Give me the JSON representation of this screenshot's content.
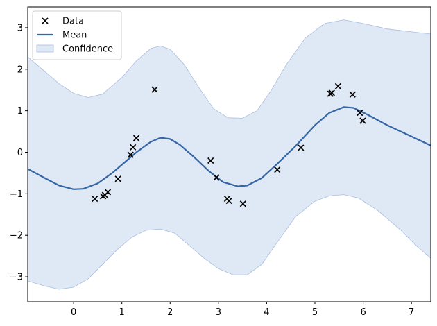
{
  "chart_data": {
    "type": "line",
    "xlim": [
      -0.95,
      7.4
    ],
    "ylim": [
      -3.6,
      3.5
    ],
    "x_ticks": [
      0,
      1,
      2,
      3,
      4,
      5,
      6,
      7
    ],
    "y_ticks": [
      -3,
      -2,
      -1,
      0,
      1,
      2,
      3
    ],
    "grid": false,
    "legend_position": "top-left",
    "legend": [
      {
        "label": "Data",
        "style": "marker-x"
      },
      {
        "label": "Mean",
        "style": "line"
      },
      {
        "label": "Confidence",
        "style": "band"
      }
    ],
    "colors": {
      "data": "#000000",
      "mean": "#3465a4",
      "confidence_fill": "#c5d6ec",
      "confidence_edge": "#a9bedc"
    },
    "series": [
      {
        "name": "Data",
        "kind": "scatter",
        "points": [
          [
            0.44,
            -1.12
          ],
          [
            0.61,
            -1.06
          ],
          [
            0.65,
            -1.03
          ],
          [
            0.71,
            -0.96
          ],
          [
            0.92,
            -0.64
          ],
          [
            1.18,
            -0.06
          ],
          [
            1.23,
            0.12
          ],
          [
            1.3,
            0.34
          ],
          [
            1.68,
            1.51
          ],
          [
            2.84,
            -0.2
          ],
          [
            2.96,
            -0.61
          ],
          [
            3.18,
            -1.12
          ],
          [
            3.22,
            -1.17
          ],
          [
            3.51,
            -1.24
          ],
          [
            4.22,
            -0.42
          ],
          [
            4.71,
            0.11
          ],
          [
            5.32,
            1.41
          ],
          [
            5.35,
            1.43
          ],
          [
            5.48,
            1.59
          ],
          [
            5.78,
            1.39
          ],
          [
            5.93,
            0.95
          ],
          [
            5.99,
            0.76
          ]
        ]
      },
      {
        "name": "Mean",
        "kind": "line",
        "points": [
          [
            -0.95,
            -0.4
          ],
          [
            -0.6,
            -0.62
          ],
          [
            -0.3,
            -0.8
          ],
          [
            0.0,
            -0.89
          ],
          [
            0.2,
            -0.88
          ],
          [
            0.5,
            -0.75
          ],
          [
            0.8,
            -0.5
          ],
          [
            1.0,
            -0.3
          ],
          [
            1.3,
            0.0
          ],
          [
            1.6,
            0.25
          ],
          [
            1.8,
            0.35
          ],
          [
            2.0,
            0.32
          ],
          [
            2.2,
            0.18
          ],
          [
            2.5,
            -0.12
          ],
          [
            2.8,
            -0.45
          ],
          [
            3.1,
            -0.72
          ],
          [
            3.4,
            -0.82
          ],
          [
            3.6,
            -0.8
          ],
          [
            3.9,
            -0.62
          ],
          [
            4.2,
            -0.3
          ],
          [
            4.6,
            0.15
          ],
          [
            5.0,
            0.65
          ],
          [
            5.3,
            0.95
          ],
          [
            5.6,
            1.09
          ],
          [
            5.8,
            1.07
          ],
          [
            6.1,
            0.9
          ],
          [
            6.5,
            0.65
          ],
          [
            7.0,
            0.38
          ],
          [
            7.4,
            0.16
          ]
        ]
      },
      {
        "name": "Confidence",
        "kind": "band",
        "upper": [
          [
            -0.95,
            2.3
          ],
          [
            -0.6,
            1.95
          ],
          [
            -0.3,
            1.65
          ],
          [
            0.0,
            1.42
          ],
          [
            0.3,
            1.32
          ],
          [
            0.6,
            1.4
          ],
          [
            1.0,
            1.8
          ],
          [
            1.3,
            2.2
          ],
          [
            1.6,
            2.5
          ],
          [
            1.8,
            2.56
          ],
          [
            2.0,
            2.48
          ],
          [
            2.3,
            2.1
          ],
          [
            2.6,
            1.55
          ],
          [
            2.9,
            1.05
          ],
          [
            3.2,
            0.83
          ],
          [
            3.5,
            0.82
          ],
          [
            3.8,
            1.0
          ],
          [
            4.1,
            1.5
          ],
          [
            4.4,
            2.1
          ],
          [
            4.8,
            2.75
          ],
          [
            5.2,
            3.1
          ],
          [
            5.6,
            3.19
          ],
          [
            6.0,
            3.1
          ],
          [
            6.5,
            2.97
          ],
          [
            7.0,
            2.9
          ],
          [
            7.4,
            2.85
          ]
        ],
        "lower": [
          [
            -0.95,
            -3.1
          ],
          [
            -0.6,
            -3.22
          ],
          [
            -0.3,
            -3.3
          ],
          [
            0.0,
            -3.25
          ],
          [
            0.3,
            -3.05
          ],
          [
            0.6,
            -2.7
          ],
          [
            0.9,
            -2.35
          ],
          [
            1.2,
            -2.05
          ],
          [
            1.5,
            -1.88
          ],
          [
            1.8,
            -1.85
          ],
          [
            2.1,
            -1.95
          ],
          [
            2.4,
            -2.25
          ],
          [
            2.7,
            -2.55
          ],
          [
            3.0,
            -2.8
          ],
          [
            3.3,
            -2.95
          ],
          [
            3.6,
            -2.95
          ],
          [
            3.9,
            -2.7
          ],
          [
            4.2,
            -2.2
          ],
          [
            4.6,
            -1.55
          ],
          [
            5.0,
            -1.18
          ],
          [
            5.3,
            -1.05
          ],
          [
            5.6,
            -1.02
          ],
          [
            5.9,
            -1.1
          ],
          [
            6.3,
            -1.4
          ],
          [
            6.8,
            -1.9
          ],
          [
            7.1,
            -2.25
          ],
          [
            7.4,
            -2.55
          ]
        ]
      }
    ]
  }
}
